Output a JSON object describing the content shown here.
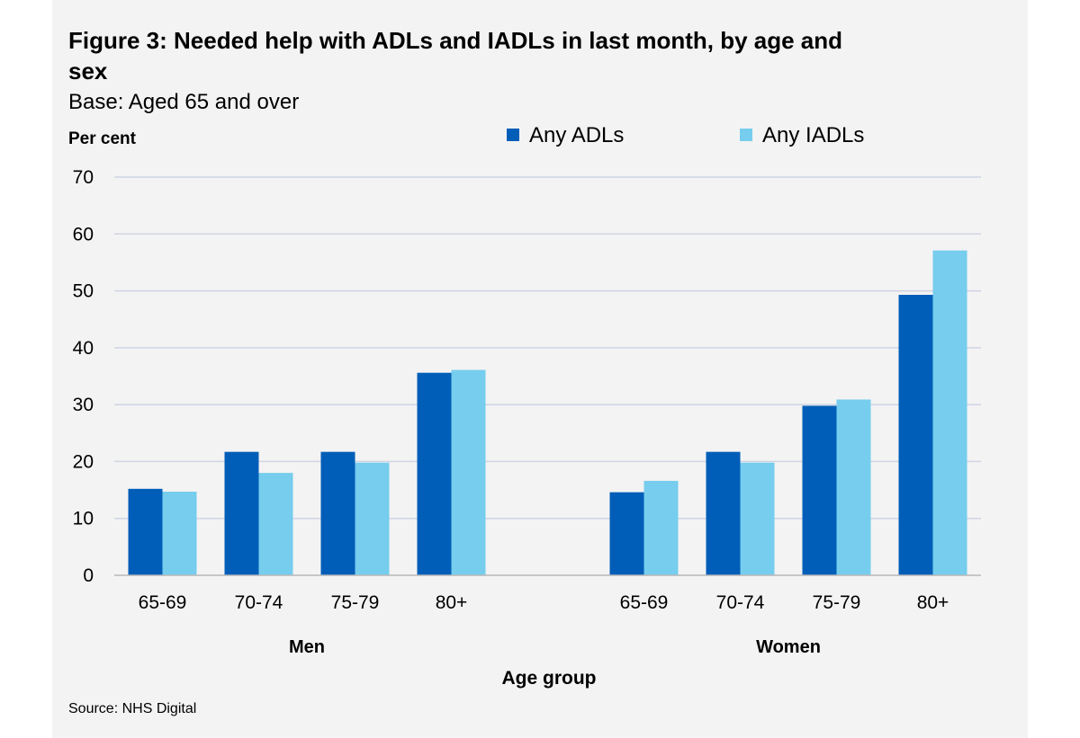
{
  "title": "Figure 3:  Needed help with ADLs and IADLs in last month, by age and sex",
  "subtitle": "Base: Aged 65 and over",
  "source": "Source: NHS  Digital",
  "chart_data": {
    "type": "bar",
    "title": "Figure 3:  Needed help with ADLs and IADLs in last month, by age and sex",
    "subtitle": "Base: Aged 65 and over",
    "ylabel": "Per cent",
    "xlabel": "Age group",
    "ylim": [
      0,
      70
    ],
    "yticks": [
      0,
      10,
      20,
      30,
      40,
      50,
      60,
      70
    ],
    "grid": true,
    "legend_position": "top-right",
    "groups": [
      {
        "label": "Men",
        "categories": [
          "65-69",
          "70-74",
          "75-79",
          "80+"
        ]
      },
      {
        "label": "Women",
        "categories": [
          "65-69",
          "70-74",
          "75-79",
          "80+"
        ]
      }
    ],
    "series": [
      {
        "name": "Any ADLs",
        "color": "#005eb8",
        "values": [
          15.2,
          21.7,
          21.7,
          35.6,
          14.6,
          21.7,
          29.8,
          49.3
        ]
      },
      {
        "name": "Any IADLs",
        "color": "#76cdee",
        "values": [
          14.7,
          18.0,
          19.8,
          36.1,
          16.6,
          19.8,
          30.9,
          57.1
        ]
      }
    ],
    "gridline_color": "#d0d4e4",
    "axis_color": "#b8b8b8"
  }
}
